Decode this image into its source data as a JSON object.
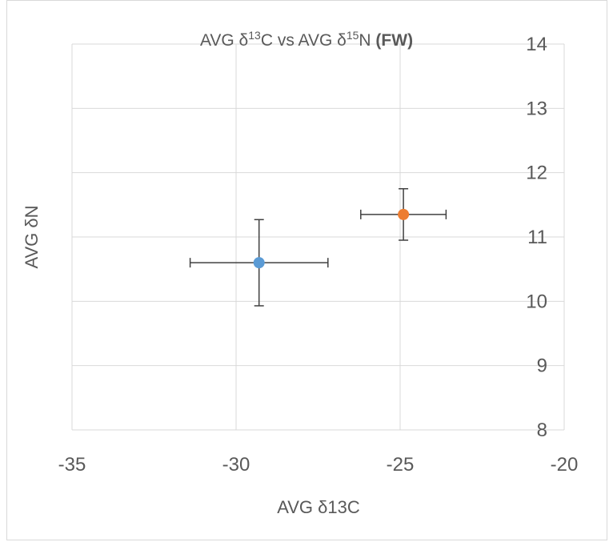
{
  "chart_data": {
    "type": "scatter",
    "title": {
      "prefix": "AVG δ",
      "sup1": "13",
      "middle": "C vs AVG δ",
      "sup2": "15",
      "suffix": "N ",
      "bold": "(FW)"
    },
    "xlabel": "AVG δ13C",
    "ylabel": "AVG δN",
    "xlim": [
      -35,
      -20
    ],
    "ylim": [
      8,
      14
    ],
    "x_ticks": [
      -35,
      -30,
      -25,
      -20
    ],
    "y_ticks": [
      8,
      9,
      10,
      11,
      12,
      13,
      14
    ],
    "grid": true,
    "series": [
      {
        "color": "#5b9bd5",
        "points": [
          {
            "x": -29.3,
            "y": 10.6,
            "x_err": 2.1,
            "y_err_plus": 0.67,
            "y_err_minus": 0.67
          }
        ]
      },
      {
        "color": "#ed7d31",
        "points": [
          {
            "x": -24.9,
            "y": 11.35,
            "x_err": 1.3,
            "y_err_plus": 0.4,
            "y_err_minus": 0.4
          }
        ]
      }
    ]
  }
}
